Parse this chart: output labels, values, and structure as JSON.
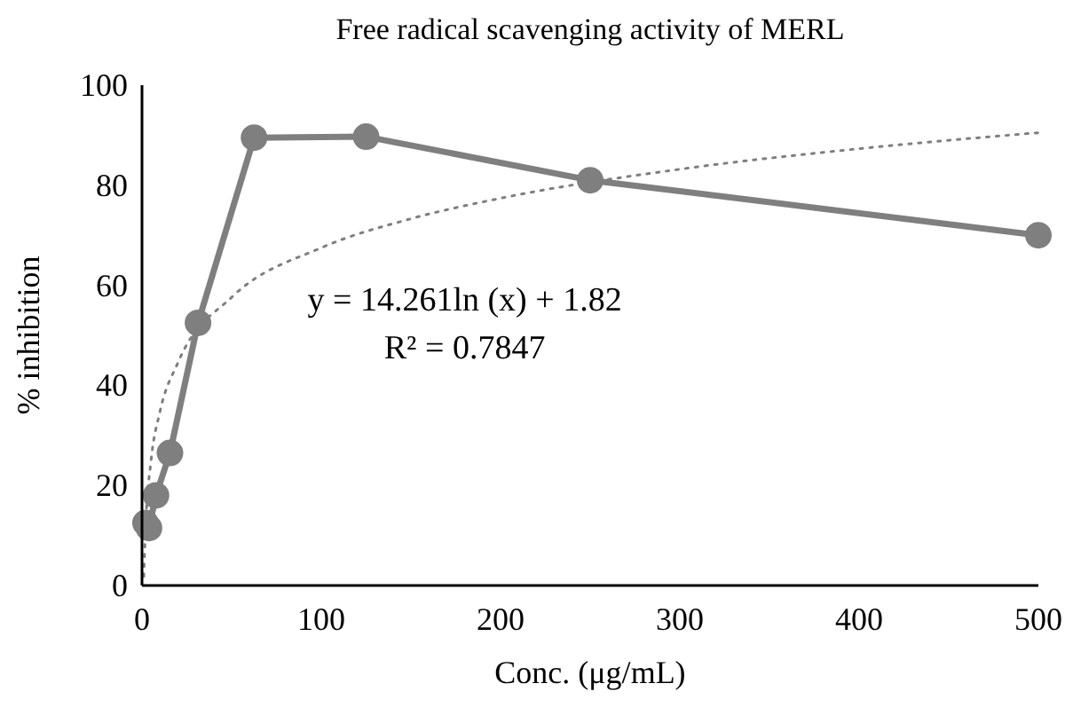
{
  "chart_data": {
    "type": "line",
    "title": "Free radical scavenging activity of MERL",
    "xlabel": "Conc. (μg/mL)",
    "ylabel": "% inhibition",
    "xlim": [
      0,
      500
    ],
    "xticks": [
      0,
      100,
      200,
      300,
      400,
      500
    ],
    "ylim": [
      0,
      100
    ],
    "yticks": [
      0,
      20,
      40,
      60,
      80,
      100
    ],
    "series": [
      {
        "color": "#7f7f7f",
        "marker": "circle",
        "line_style": "solid",
        "x": [
          1.95,
          3.9,
          7.8,
          15.6,
          31.25,
          62.5,
          125,
          250,
          500
        ],
        "values": [
          12.5,
          11.5,
          18,
          26.5,
          52.5,
          89.5,
          89.7,
          81,
          70
        ]
      },
      {
        "type": "line",
        "color": "#7f7f7f",
        "marker": "none",
        "line_style": "dotted",
        "x": [
          1,
          2,
          5,
          10,
          20,
          50,
          100,
          150,
          200,
          300,
          400,
          500
        ],
        "values": [
          1.8,
          11.7,
          24.8,
          34.7,
          44.5,
          57.6,
          67.5,
          73.3,
          77.4,
          83.2,
          87.3,
          90.5
        ]
      }
    ],
    "annotations": [
      "y = 14.261ln (x) + 1.82",
      "R² = 0.7847"
    ]
  }
}
